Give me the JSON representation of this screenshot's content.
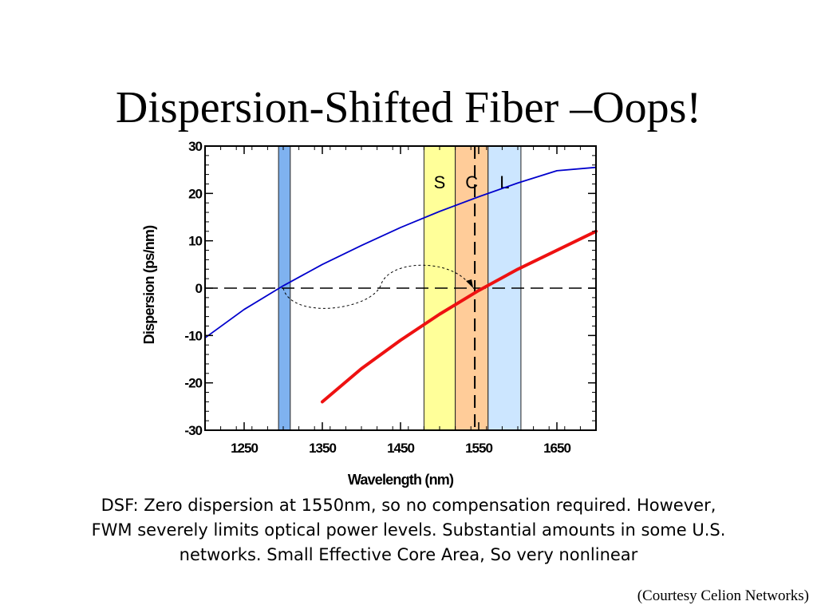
{
  "slide": {
    "title": "Dispersion-Shifted Fiber –Oops!",
    "caption_line1": "DSF:  Zero dispersion at 1550nm, so no compensation required.  However,",
    "caption_line2": "FWM severely limits optical power levels. Substantial amounts in some U.S.",
    "caption_line3": "networks. Small Effective Core Area, So very nonlinear",
    "credit": "(Courtesy Celion Networks)"
  },
  "chart_data": {
    "type": "line",
    "xlabel": "Wavelength (nm)",
    "ylabel": "Dispersion (ps/nm)",
    "xlim": [
      1200,
      1700
    ],
    "ylim": [
      -30,
      30
    ],
    "xticks": [
      1250,
      1350,
      1450,
      1550,
      1650
    ],
    "yticks": [
      30,
      20,
      10,
      0,
      -10,
      -20,
      -30
    ],
    "zero_line": true,
    "marker_wavelength": 1545,
    "bands": [
      {
        "label": "",
        "range": [
          1294,
          1309
        ],
        "color": "#7fb2f0"
      },
      {
        "label": "S",
        "range": [
          1480,
          1520
        ],
        "color": "#ffff99"
      },
      {
        "label": "C",
        "range": [
          1520,
          1562
        ],
        "color": "#ffcc99"
      },
      {
        "label": "L",
        "range": [
          1562,
          1604
        ],
        "color": "#cce6ff"
      }
    ],
    "series": [
      {
        "color": "#0000cc",
        "x": [
          1200,
          1250,
          1300,
          1350,
          1400,
          1450,
          1500,
          1550,
          1600,
          1650,
          1700
        ],
        "values": [
          -10.5,
          -4.5,
          0.5,
          5.0,
          9.0,
          12.8,
          16.2,
          19.3,
          22.2,
          24.8,
          25.5
        ]
      },
      {
        "color": "#ee1111",
        "x": [
          1350,
          1400,
          1450,
          1500,
          1550,
          1600,
          1650,
          1700
        ],
        "values": [
          -24.0,
          -17.0,
          -11.0,
          -5.5,
          -0.5,
          4.0,
          8.0,
          12.0
        ]
      }
    ]
  }
}
